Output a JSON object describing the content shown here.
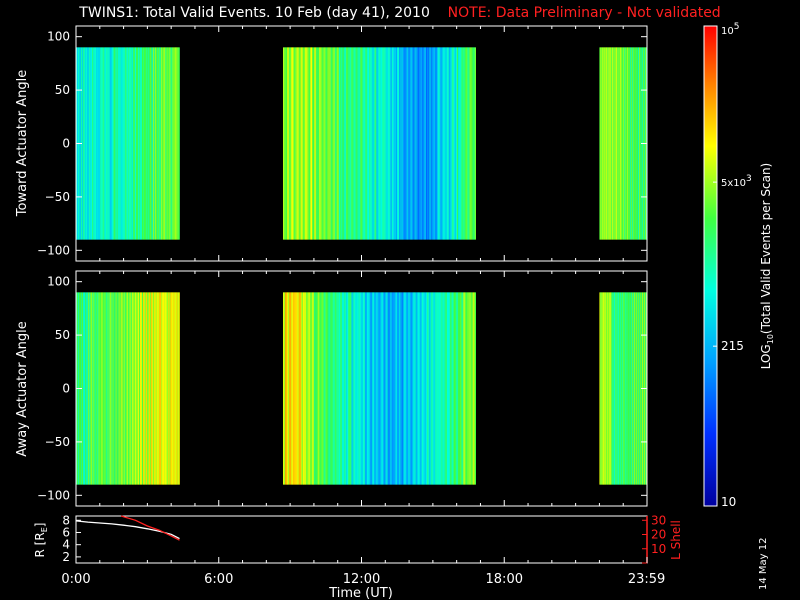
{
  "header": {
    "title": "TWINS1: Total Valid Events. 10 Feb (day  41), 2010",
    "note": "NOTE: Data Preliminary - Not validated"
  },
  "date_stamp": "14 May 12",
  "colors": {
    "note": "#ff2020",
    "background": "#000000",
    "axes": "#ffffff",
    "lshell_line": "#ff2020"
  },
  "chart_data": [
    {
      "type": "heatmap",
      "ylabel": "Toward Actuator Angle",
      "ylim": [
        -110,
        110
      ],
      "yticks": [
        100,
        50,
        0,
        -50,
        -100
      ],
      "xlim_hours": [
        0,
        24
      ],
      "y_extent": [
        -90,
        90
      ],
      "data_blocks_hours": [
        [
          0,
          4.35
        ],
        [
          8.7,
          16.8
        ],
        [
          22,
          24
        ]
      ],
      "column_log_values": [
        3.0,
        2.9,
        3.1,
        2.8,
        3.0,
        2.9,
        3.2,
        3.0,
        3.1,
        3.2,
        3.3,
        3.4,
        3.5,
        3.55,
        3.6,
        3.65,
        3.7,
        3.75,
        3.8,
        3.85,
        3.85,
        3.85,
        3.75,
        3.7,
        3.6,
        3.5,
        3.4,
        3.35,
        3.3,
        3.3,
        3.2,
        3.1,
        3.0,
        2.9,
        2.8,
        2.7,
        2.5,
        2.4,
        2.3,
        2.3,
        2.4,
        2.5,
        2.7,
        2.8,
        3.0,
        3.2,
        3.4,
        3.6,
        3.75,
        3.85,
        3.8,
        3.7,
        3.6,
        3.5,
        3.45,
        3.4
      ]
    },
    {
      "type": "heatmap",
      "ylabel": "Away Actuator Angle",
      "ylim": [
        -110,
        110
      ],
      "yticks": [
        100,
        50,
        0,
        -50,
        -100
      ],
      "xlim_hours": [
        0,
        24
      ],
      "y_extent": [
        -90,
        90
      ],
      "data_blocks_hours": [
        [
          0,
          4.35
        ],
        [
          8.7,
          16.8
        ],
        [
          22,
          24
        ]
      ],
      "column_log_values": [
        3.4,
        3.3,
        3.5,
        3.4,
        3.6,
        3.5,
        3.7,
        3.6,
        3.7,
        3.8,
        3.9,
        4.0,
        4.05,
        4.1,
        4.1,
        4.15,
        4.2,
        4.2,
        4.25,
        4.25,
        3.9,
        3.8,
        3.65,
        3.5,
        3.4,
        3.3,
        3.2,
        3.1,
        3.0,
        2.9,
        2.8,
        2.7,
        2.6,
        2.55,
        2.5,
        2.5,
        2.55,
        2.6,
        2.7,
        2.8,
        2.9,
        3.0,
        3.1,
        3.2,
        3.3,
        3.45,
        3.6,
        3.75,
        3.85,
        3.9,
        3.3,
        3.3,
        3.4,
        3.5,
        3.6,
        3.7
      ]
    },
    {
      "type": "line",
      "xlabel": "Time (UT)",
      "x_tick_labels": [
        "0:00",
        "6:00",
        "12:00",
        "18:00",
        "23:59"
      ],
      "x_tick_hours": [
        0,
        6,
        12,
        18,
        23.983
      ],
      "ylabel_left": "R [R",
      "ylabel_left_sub": "E",
      "ylabel_left_close": "]",
      "ylim_left": [
        1,
        8.7
      ],
      "yticks_left": [
        2,
        4,
        6,
        8
      ],
      "ylabel_right": "L Shell",
      "ylim_right": [
        0,
        33
      ],
      "yticks_right": [
        10,
        20,
        30
      ],
      "series": [
        {
          "axis": "left",
          "x": [
            0.0,
            0.5,
            1.0,
            1.5,
            2.0,
            2.5,
            3.0,
            3.5,
            4.0,
            4.35
          ],
          "y": [
            7.9,
            7.7,
            7.55,
            7.4,
            7.2,
            6.95,
            6.6,
            6.2,
            5.7,
            5.0
          ]
        },
        {
          "axis": "right",
          "x": [
            1.9,
            2.5,
            3.0,
            3.5,
            4.0,
            4.35
          ],
          "y": [
            33,
            30,
            26,
            23,
            19,
            16
          ]
        }
      ]
    }
  ],
  "colorbar": {
    "label_pre": "LOG",
    "label_sub": "10",
    "label_post": "(Total Valid Events per Scan)",
    "log_range": [
      1,
      5
    ],
    "ticks": [
      {
        "log": 5,
        "base": "10",
        "exp": "5"
      },
      {
        "log": 3.699,
        "base": "5x10",
        "exp": "3"
      },
      {
        "log": 2.332,
        "base": "215",
        "exp": ""
      },
      {
        "log": 1,
        "base": "10",
        "exp": ""
      }
    ]
  }
}
